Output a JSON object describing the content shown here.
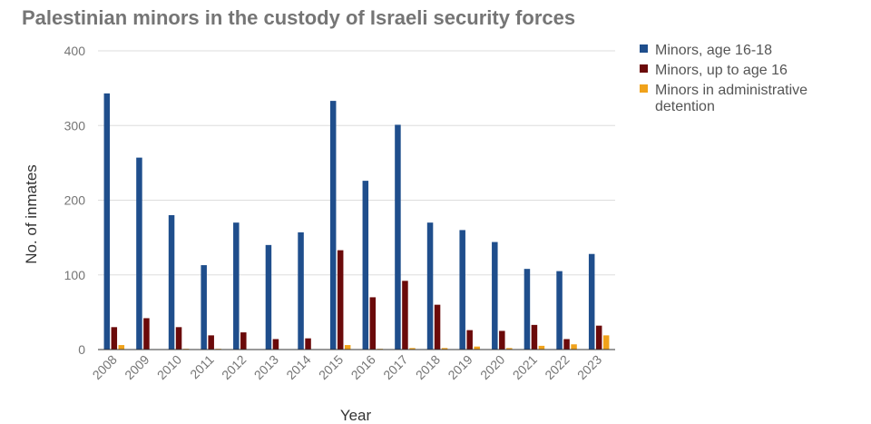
{
  "chart_data": {
    "type": "bar",
    "title": "Palestinian minors in the custody of Israeli security forces",
    "xlabel": "Year",
    "ylabel": "No. of inmates",
    "ylim": [
      0,
      400
    ],
    "yticks": [
      "0",
      "100",
      "200",
      "300",
      "400"
    ],
    "grid": true,
    "legend_position": "top-right",
    "categories": [
      "2008",
      "2009",
      "2010",
      "2011",
      "2012",
      "2013",
      "2014",
      "2015",
      "2016",
      "2017",
      "2018",
      "2019",
      "2020",
      "2021",
      "2022",
      "2023"
    ],
    "series": [
      {
        "name": "Minors, age 16-18",
        "color": "#1f4e8c",
        "values": [
          343,
          257,
          180,
          113,
          170,
          140,
          157,
          333,
          226,
          301,
          170,
          160,
          144,
          108,
          105,
          128
        ]
      },
      {
        "name": "Minors, up to age 16",
        "color": "#6b0a0a",
        "values": [
          30,
          42,
          30,
          19,
          23,
          14,
          15,
          133,
          70,
          92,
          60,
          26,
          25,
          33,
          14,
          32
        ]
      },
      {
        "name": "Minors in administrative detention",
        "legend_lines": [
          "Minors in administrative",
          "detention"
        ],
        "color": "#f0a21b",
        "values": [
          6,
          0,
          1,
          1,
          0,
          0,
          0,
          6,
          1,
          2,
          2,
          4,
          2,
          5,
          7,
          19
        ]
      }
    ]
  }
}
